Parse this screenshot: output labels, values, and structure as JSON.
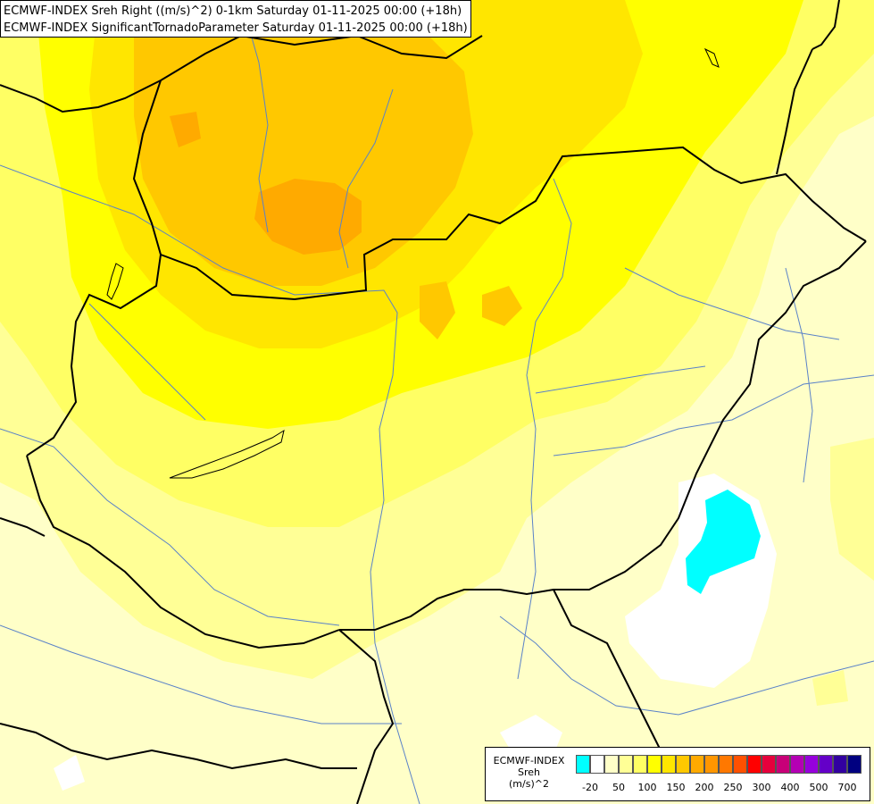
{
  "header": {
    "line1": "ECMWF-INDEX Sreh Right ((m/s)^2) 0-1km Saturday 01-11-2025 00:00 (+18h)",
    "line2": "ECMWF-INDEX SignificantTornadoParameter Saturday 01-11-2025 00:00 (+18h)"
  },
  "legend": {
    "source": "ECMWF-INDEX",
    "variable": "Sreh",
    "unit": "(m/s)^2",
    "ticks": [
      "-20",
      "50",
      "100",
      "150",
      "200",
      "250",
      "300",
      "400",
      "500",
      "700"
    ],
    "colors": [
      "#00ffff",
      "#ffffff",
      "#ffffc8",
      "#ffff96",
      "#ffff64",
      "#ffff00",
      "#ffe600",
      "#ffc800",
      "#ffaa00",
      "#ff9600",
      "#ff7800",
      "#ff5000",
      "#ff0000",
      "#e6003c",
      "#c80078",
      "#b400b4",
      "#9600dc",
      "#6400c8",
      "#3200a0",
      "#000080"
    ]
  },
  "map": {
    "colors": {
      "base": "#ffffc8",
      "level1": "#ffff96",
      "level2": "#ffff64",
      "level3": "#ffff00",
      "level4": "#ffe600",
      "level5": "#ffc800",
      "level6": "#ffaa00",
      "white": "#ffffff",
      "cyan": "#00ffff",
      "border": "#000000",
      "river": "#5a82c8"
    }
  }
}
